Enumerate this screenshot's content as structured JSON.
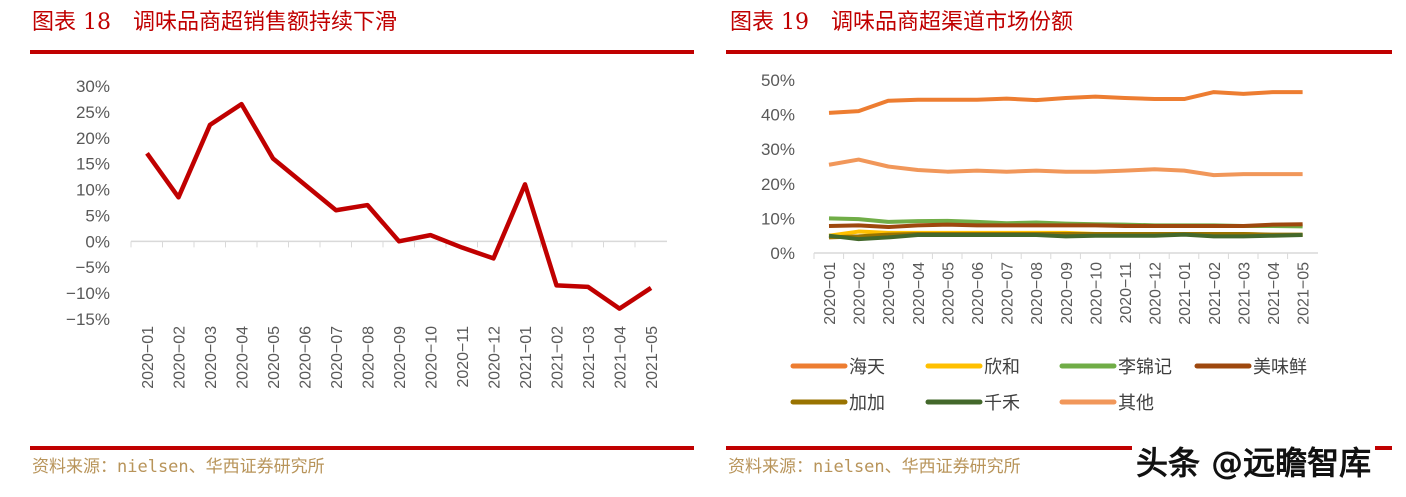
{
  "charts": [
    {
      "title": "图表 18　调味品商超销售额持续下滑",
      "source": "资料来源：nielsen、华西证券研究所"
    },
    {
      "title": "图表 19　调味品商超渠道市场份额",
      "source": "资料来源：nielsen、华西证券研究所"
    }
  ],
  "watermark": "头条 @远瞻智库",
  "chart_data": [
    {
      "type": "line",
      "title": "调味品商超销售额持续下滑",
      "ylim": [
        -15,
        30
      ],
      "yticks": [
        "30%",
        "25%",
        "20%",
        "15%",
        "10%",
        "5%",
        "0%",
        "−5%",
        "−10%",
        "−15%"
      ],
      "categories": [
        "2020−01",
        "2020−02",
        "2020−03",
        "2020−04",
        "2020−05",
        "2020−06",
        "2020−07",
        "2020−08",
        "2020−09",
        "2020−10",
        "2020−11",
        "2020−12",
        "2021−01",
        "2021−02",
        "2021−03",
        "2021−04",
        "2021−05"
      ],
      "series": [
        {
          "color": "#c00000",
          "values": [
            17,
            8.5,
            22.5,
            26.5,
            16,
            11,
            6,
            7,
            0,
            1.2,
            -1.2,
            -3.3,
            11,
            -8.5,
            -8.8,
            -13,
            -9
          ]
        }
      ]
    },
    {
      "type": "line",
      "title": "调味品商超渠道市场份额",
      "ylim": [
        0,
        50
      ],
      "yticks": [
        "50%",
        "40%",
        "30%",
        "20%",
        "10%",
        "0%"
      ],
      "legend": "bottom",
      "categories": [
        "2020−01",
        "2020−02",
        "2020−03",
        "2020−04",
        "2020−05",
        "2020−06",
        "2020−07",
        "2020−08",
        "2020−09",
        "2020−10",
        "2020−11",
        "2020−12",
        "2021−01",
        "2021−02",
        "2021−03",
        "2021−04",
        "2021−05"
      ],
      "series": [
        {
          "name": "海天",
          "color": "#ED7D31",
          "values": [
            40.5,
            41,
            44,
            44.3,
            44.3,
            44.3,
            44.6,
            44.2,
            44.8,
            45.2,
            44.8,
            44.5,
            44.5,
            46.5,
            46,
            46.5,
            46.5
          ]
        },
        {
          "name": "欣和",
          "color": "#FFC000",
          "values": [
            5,
            6.2,
            5.8,
            5.8,
            5.8,
            5.8,
            5.8,
            5.8,
            5.8,
            5.5,
            5.5,
            5.5,
            5.5,
            5.5,
            5.5,
            5.2,
            5.2
          ]
        },
        {
          "name": "李锦记",
          "color": "#70AD47",
          "values": [
            10,
            9.8,
            9,
            9.2,
            9.3,
            9,
            8.6,
            8.8,
            8.5,
            8.3,
            8.2,
            8,
            8,
            8,
            7.8,
            7.8,
            7.7
          ]
        },
        {
          "name": "美味鲜",
          "color": "#9E480E",
          "values": [
            7.8,
            8,
            7.5,
            8,
            8.2,
            8,
            8,
            8,
            8,
            8,
            7.8,
            7.8,
            7.8,
            7.8,
            7.8,
            8.2,
            8.3
          ]
        },
        {
          "name": "加加",
          "color": "#997300",
          "values": [
            4.5,
            4.8,
            5.3,
            5.5,
            5.5,
            5.5,
            5.5,
            5.5,
            5.5,
            5.5,
            5.5,
            5.5,
            5.5,
            5.5,
            5.5,
            5.3,
            5.3
          ]
        },
        {
          "name": "千禾",
          "color": "#43682B",
          "values": [
            5,
            4,
            4.5,
            5.2,
            5.2,
            5.2,
            5.2,
            5.2,
            4.8,
            5,
            5,
            5,
            5.3,
            4.8,
            4.8,
            5,
            5.2
          ]
        },
        {
          "name": "其他",
          "color": "#F1975A",
          "values": [
            25.5,
            27,
            25,
            24,
            23.5,
            23.8,
            23.5,
            23.8,
            23.5,
            23.5,
            23.8,
            24.2,
            23.8,
            22.5,
            22.8,
            22.8,
            22.8
          ]
        }
      ]
    }
  ]
}
